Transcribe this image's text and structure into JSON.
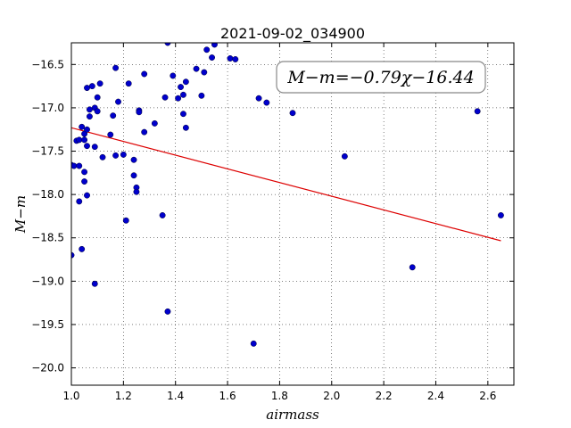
{
  "chart_data": {
    "type": "scatter",
    "title": "2021-09-02_034900",
    "xlabel": "airmass",
    "ylabel": "M−m",
    "xlim": [
      1.0,
      2.7
    ],
    "ylim": [
      -20.2,
      -16.25
    ],
    "y_inverted": true,
    "grid": true,
    "x_ticks": [
      1.0,
      1.2,
      1.4,
      1.6,
      1.8,
      2.0,
      2.2,
      2.4,
      2.6
    ],
    "x_tick_labels": [
      "1.0",
      "1.2",
      "1.4",
      "1.6",
      "1.8",
      "2.0",
      "2.2",
      "2.4",
      "2.6"
    ],
    "y_ticks": [
      -16.5,
      -17.0,
      -17.5,
      -18.0,
      -18.5,
      -19.0,
      -19.5,
      -20.0
    ],
    "y_tick_labels": [
      "−16.5",
      "−17.0",
      "−17.5",
      "−18.0",
      "−18.5",
      "−19.0",
      "−19.5",
      "−20.0"
    ],
    "annotation": "M−m=−0.79χ−16.44",
    "annotation_position": "top-right",
    "point_color": "#0000cc",
    "fit_color": "#dd0000",
    "fit_line": {
      "slope": -0.79,
      "intercept": -16.44,
      "x_range": [
        1.0,
        2.65
      ]
    },
    "points": [
      {
        "x": 1.0,
        "y": -17.66
      },
      {
        "x": 1.01,
        "y": -17.67
      },
      {
        "x": 1.02,
        "y": -17.38
      },
      {
        "x": 1.03,
        "y": -17.37
      },
      {
        "x": 1.03,
        "y": -17.67
      },
      {
        "x": 1.03,
        "y": -18.08
      },
      {
        "x": 1.04,
        "y": -17.22
      },
      {
        "x": 1.04,
        "y": -18.63
      },
      {
        "x": 1.05,
        "y": -17.3
      },
      {
        "x": 1.05,
        "y": -17.37
      },
      {
        "x": 1.05,
        "y": -17.85
      },
      {
        "x": 1.05,
        "y": -17.74
      },
      {
        "x": 1.06,
        "y": -17.25
      },
      {
        "x": 1.06,
        "y": -17.44
      },
      {
        "x": 1.06,
        "y": -18.01
      },
      {
        "x": 1.06,
        "y": -16.77
      },
      {
        "x": 1.07,
        "y": -17.02
      },
      {
        "x": 1.07,
        "y": -17.1
      },
      {
        "x": 1.08,
        "y": -16.75
      },
      {
        "x": 1.09,
        "y": -17.0
      },
      {
        "x": 1.09,
        "y": -17.45
      },
      {
        "x": 1.1,
        "y": -16.88
      },
      {
        "x": 1.1,
        "y": -17.04
      },
      {
        "x": 1.11,
        "y": -16.72
      },
      {
        "x": 1.12,
        "y": -17.57
      },
      {
        "x": 1.15,
        "y": -17.31
      },
      {
        "x": 1.16,
        "y": -17.09
      },
      {
        "x": 1.17,
        "y": -16.54
      },
      {
        "x": 1.17,
        "y": -17.55
      },
      {
        "x": 1.18,
        "y": -16.93
      },
      {
        "x": 1.2,
        "y": -17.54
      },
      {
        "x": 1.21,
        "y": -18.3
      },
      {
        "x": 1.22,
        "y": -16.72
      },
      {
        "x": 1.24,
        "y": -17.6
      },
      {
        "x": 1.24,
        "y": -17.78
      },
      {
        "x": 1.25,
        "y": -17.92
      },
      {
        "x": 1.25,
        "y": -17.97
      },
      {
        "x": 1.26,
        "y": -17.03
      },
      {
        "x": 1.26,
        "y": -17.05
      },
      {
        "x": 1.28,
        "y": -16.61
      },
      {
        "x": 1.28,
        "y": -17.28
      },
      {
        "x": 1.32,
        "y": -17.18
      },
      {
        "x": 1.35,
        "y": -18.24
      },
      {
        "x": 1.36,
        "y": -16.88
      },
      {
        "x": 1.37,
        "y": -16.25
      },
      {
        "x": 1.37,
        "y": -19.35
      },
      {
        "x": 1.39,
        "y": -16.63
      },
      {
        "x": 1.41,
        "y": -16.89
      },
      {
        "x": 1.42,
        "y": -16.76
      },
      {
        "x": 1.43,
        "y": -16.85
      },
      {
        "x": 1.43,
        "y": -17.07
      },
      {
        "x": 1.44,
        "y": -17.23
      },
      {
        "x": 1.44,
        "y": -16.7
      },
      {
        "x": 1.48,
        "y": -16.55
      },
      {
        "x": 1.5,
        "y": -16.86
      },
      {
        "x": 1.51,
        "y": -16.59
      },
      {
        "x": 1.52,
        "y": -16.33
      },
      {
        "x": 1.54,
        "y": -16.42
      },
      {
        "x": 1.55,
        "y": -16.27
      },
      {
        "x": 1.61,
        "y": -16.43
      },
      {
        "x": 1.63,
        "y": -16.44
      },
      {
        "x": 1.7,
        "y": -19.72
      },
      {
        "x": 1.72,
        "y": -16.89
      },
      {
        "x": 1.75,
        "y": -16.94
      },
      {
        "x": 1.85,
        "y": -17.06
      },
      {
        "x": 2.05,
        "y": -17.56
      },
      {
        "x": 2.31,
        "y": -18.84
      },
      {
        "x": 2.56,
        "y": -17.04
      },
      {
        "x": 2.65,
        "y": -18.24
      },
      {
        "x": 1.09,
        "y": -19.03
      },
      {
        "x": 1.0,
        "y": -18.7
      }
    ]
  }
}
